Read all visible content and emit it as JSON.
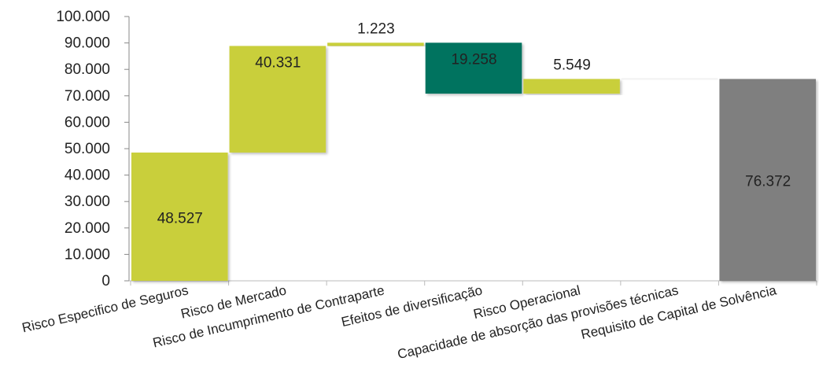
{
  "chart_data": {
    "type": "waterfall",
    "title": "",
    "xlabel": "",
    "ylabel": "",
    "ylim": [
      0,
      100000
    ],
    "yticks": [
      "0",
      "10.000",
      "20.000",
      "30.000",
      "40.000",
      "50.000",
      "60.000",
      "70.000",
      "80.000",
      "90.000",
      "100.000"
    ],
    "grid": false,
    "legend": "none",
    "categories": [
      "Risco Especifico de Seguros",
      "Risco de Mercado",
      "Risco de Incumprimento de Contraparte",
      "Efeitos de diversificação",
      "Risco Operacional",
      "Capacidade de absorção das provisões técnicas",
      "Requisito de Capital de Solvência"
    ],
    "steps": [
      {
        "base": 0,
        "top": 48527,
        "label": "48.527",
        "color": "#c9cf3a"
      },
      {
        "base": 48527,
        "top": 88858,
        "label": "40.331",
        "color": "#c9cf3a"
      },
      {
        "base": 88858,
        "top": 90081,
        "label": "1.223",
        "color": "#c9cf3a",
        "label_pos": "above"
      },
      {
        "base": 70823,
        "top": 90081,
        "label": "19.258",
        "color": "#00735e"
      },
      {
        "base": 70823,
        "top": 76372,
        "label": "5.549",
        "color": "#c9cf3a",
        "label_pos": "above"
      },
      {
        "base": 76372,
        "top": 76372,
        "label": "",
        "color": "#c9cf3a"
      },
      {
        "base": 0,
        "top": 76372,
        "label": "76.372",
        "color": "#7f7f7f"
      }
    ]
  }
}
